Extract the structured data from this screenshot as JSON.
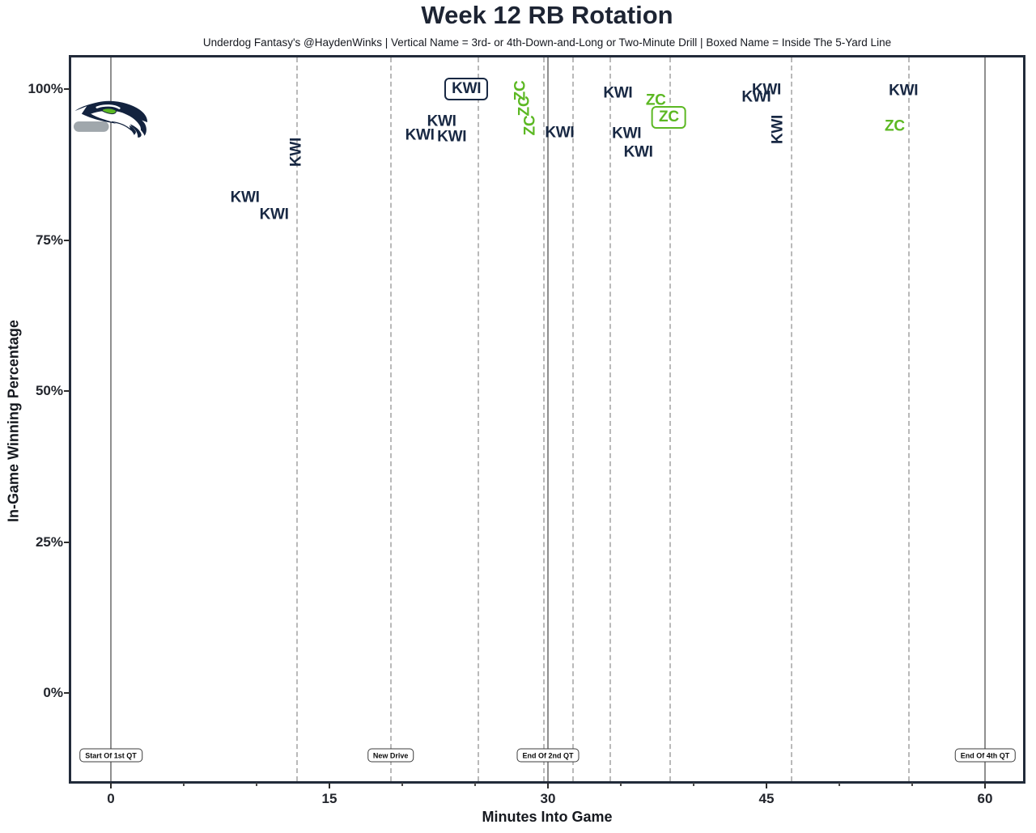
{
  "header": {
    "title": "Week 12 RB Rotation",
    "subtitle": "Underdog Fantasy's @HaydenWinks | Vertical Name = 3rd- or 4th-Down-and-Long or Two-Minute Drill | Boxed Name = Inside The 5-Yard Line"
  },
  "chart_data": {
    "type": "scatter",
    "title": "Week 12 RB Rotation",
    "xlabel": "Minutes Into Game",
    "ylabel": "In-Game Winning Percentage",
    "xlim": [
      -2.7,
      62.6
    ],
    "ylim": [
      -14.6,
      105.2
    ],
    "grid": "event-lines-only",
    "legend_position": "none",
    "x_ticks": [
      {
        "value": 0,
        "label": "0"
      },
      {
        "value": 15,
        "label": "15"
      },
      {
        "value": 30,
        "label": "30"
      },
      {
        "value": 45,
        "label": "45"
      },
      {
        "value": 60,
        "label": "60"
      }
    ],
    "x_minor_ticks": [
      5,
      10,
      20,
      25,
      35,
      40,
      50,
      55
    ],
    "y_ticks": [
      {
        "value": 0,
        "label": "0%"
      },
      {
        "value": 25,
        "label": "25%"
      },
      {
        "value": 50,
        "label": "50%"
      },
      {
        "value": 75,
        "label": "75%"
      },
      {
        "value": 100,
        "label": "100%"
      }
    ],
    "colors": {
      "navy": "#182843",
      "green": "#5cb823",
      "quarter_line": "#8f8f8f",
      "drive_line": "#b9b9b9"
    },
    "players": [
      {
        "code": "KWI",
        "color_key": "navy"
      },
      {
        "code": "ZC",
        "color_key": "green"
      }
    ],
    "quarter_lines": [
      {
        "x": 0,
        "label": "Start Of 1st QT"
      },
      {
        "x": 30,
        "label": "End Of 2nd QT"
      },
      {
        "x": 60,
        "label": "End Of 4th QT"
      }
    ],
    "drive_lines": [
      {
        "x": 12.8
      },
      {
        "x": 19.2,
        "label": "New Drive"
      },
      {
        "x": 25.2
      },
      {
        "x": 29.7
      },
      {
        "x": 31.7
      },
      {
        "x": 34.3
      },
      {
        "x": 38.4
      },
      {
        "x": 46.7
      },
      {
        "x": 54.8
      }
    ],
    "team_logo": {
      "name": "seahawks-logo",
      "x": 0,
      "y": 95
    },
    "points": [
      {
        "x": 9.2,
        "y": 82.0,
        "label": "KWI",
        "color_key": "navy",
        "variant": "plain"
      },
      {
        "x": 11.2,
        "y": 79.2,
        "label": "KWI",
        "color_key": "navy",
        "variant": "plain"
      },
      {
        "x": 12.7,
        "y": 89.5,
        "label": "KWI",
        "color_key": "navy",
        "variant": "vertical"
      },
      {
        "x": 21.2,
        "y": 92.4,
        "label": "KWI",
        "color_key": "navy",
        "variant": "plain"
      },
      {
        "x": 22.7,
        "y": 94.6,
        "label": "KWI",
        "color_key": "navy",
        "variant": "plain"
      },
      {
        "x": 23.4,
        "y": 92.1,
        "label": "KWI",
        "color_key": "navy",
        "variant": "plain"
      },
      {
        "x": 24.4,
        "y": 100.0,
        "label": "KWI",
        "color_key": "navy",
        "variant": "boxed"
      },
      {
        "x": 28.1,
        "y": 99.7,
        "label": "ZC",
        "color_key": "green",
        "variant": "vertical"
      },
      {
        "x": 28.4,
        "y": 97.2,
        "label": "ZC",
        "color_key": "green",
        "variant": "vertical"
      },
      {
        "x": 28.8,
        "y": 94.0,
        "label": "ZC",
        "color_key": "green",
        "variant": "vertical"
      },
      {
        "x": 30.8,
        "y": 92.8,
        "label": "KWI",
        "color_key": "navy",
        "variant": "plain"
      },
      {
        "x": 34.8,
        "y": 99.3,
        "label": "KWI",
        "color_key": "navy",
        "variant": "plain"
      },
      {
        "x": 35.4,
        "y": 92.6,
        "label": "KWI",
        "color_key": "navy",
        "variant": "plain"
      },
      {
        "x": 36.2,
        "y": 89.6,
        "label": "KWI",
        "color_key": "navy",
        "variant": "plain"
      },
      {
        "x": 37.4,
        "y": 98.1,
        "label": "ZC",
        "color_key": "green",
        "variant": "plain"
      },
      {
        "x": 38.3,
        "y": 95.3,
        "label": "ZC",
        "color_key": "green",
        "variant": "boxed"
      },
      {
        "x": 44.3,
        "y": 98.7,
        "label": "KWI",
        "color_key": "navy",
        "variant": "plain"
      },
      {
        "x": 45.0,
        "y": 99.8,
        "label": "KWI",
        "color_key": "navy",
        "variant": "plain"
      },
      {
        "x": 45.8,
        "y": 93.3,
        "label": "KWI",
        "color_key": "navy",
        "variant": "vertical"
      },
      {
        "x": 53.8,
        "y": 93.8,
        "label": "ZC",
        "color_key": "green",
        "variant": "plain"
      },
      {
        "x": 54.4,
        "y": 99.7,
        "label": "KWI",
        "color_key": "navy",
        "variant": "plain"
      }
    ]
  }
}
